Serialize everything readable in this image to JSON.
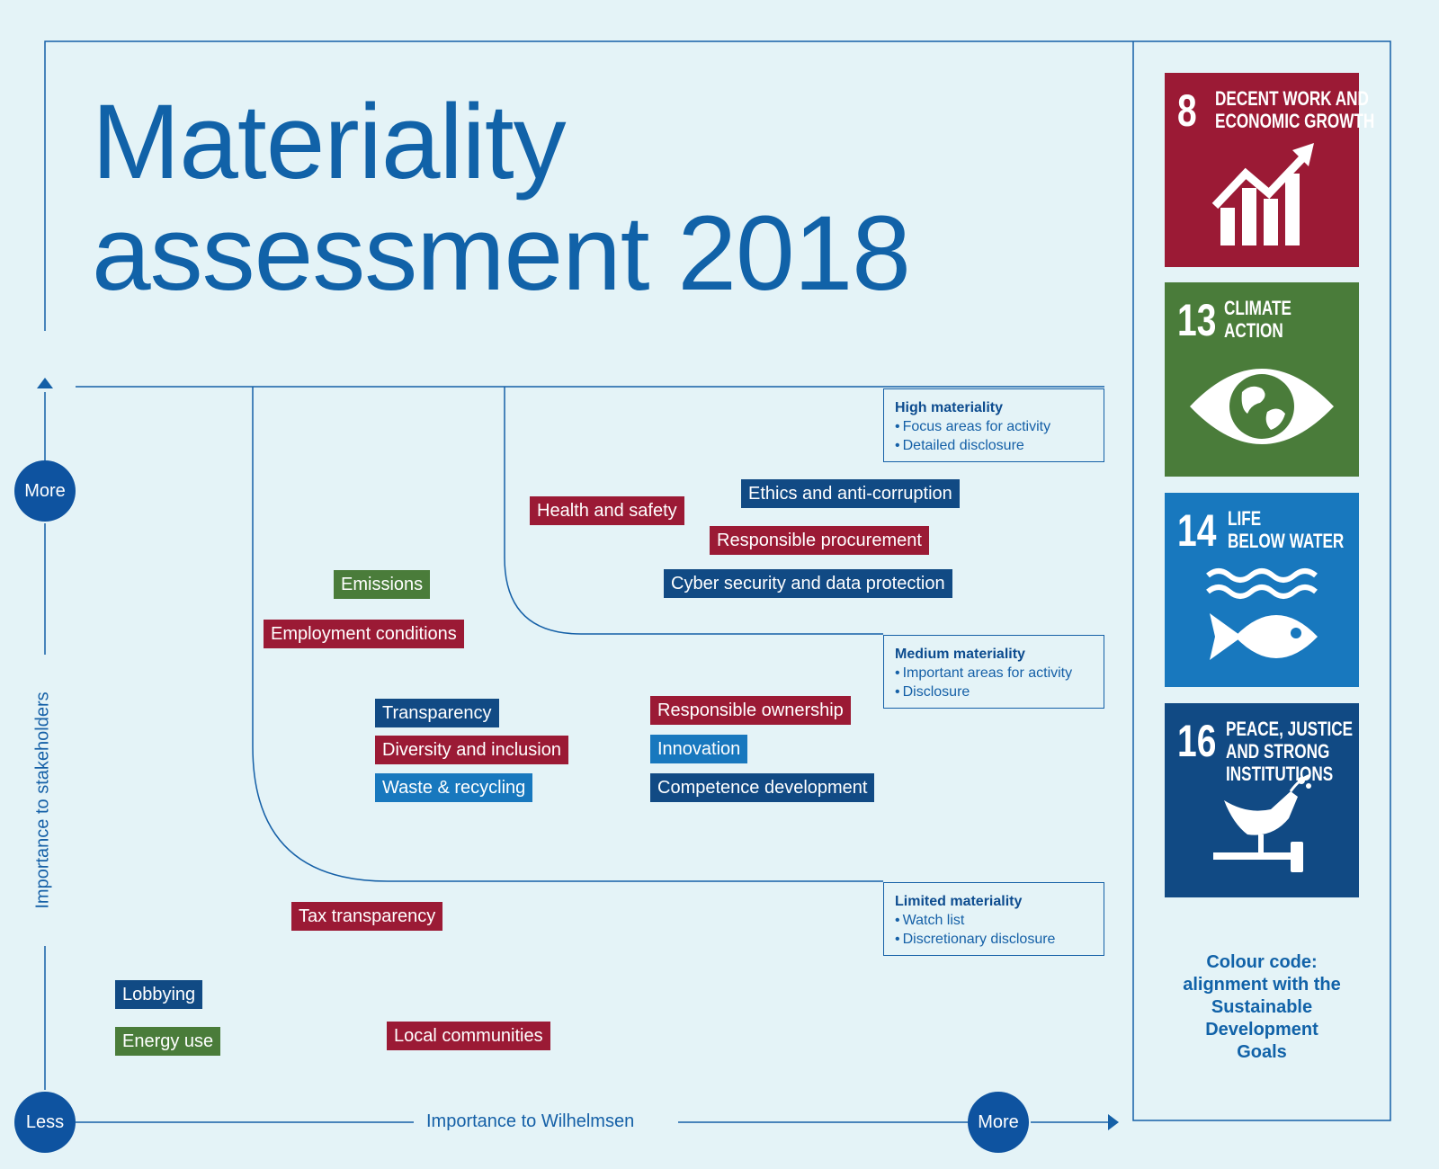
{
  "title_line1": "Materiality",
  "title_line2": "assessment 2018",
  "axes": {
    "y_label": "Importance to stakeholders",
    "x_label": "Importance to Wilhelmsen",
    "y_more": "More",
    "origin_less": "Less",
    "x_more": "More"
  },
  "legends": {
    "high": {
      "title": "High materiality",
      "items": [
        "Focus areas for activity",
        "Detailed disclosure"
      ]
    },
    "medium": {
      "title": "Medium materiality",
      "items": [
        "Important areas for activity",
        "Disclosure"
      ]
    },
    "limited": {
      "title": "Limited materiality",
      "items": [
        "Watch list",
        "Discretionary disclosure"
      ]
    }
  },
  "colors": {
    "decent_work": "#9b1a35",
    "climate": "#4a7c3a",
    "life_below_water": "#1878be",
    "peace_justice": "#114a84"
  },
  "topics": [
    {
      "label": "Health and safety",
      "color": "red"
    },
    {
      "label": "Ethics and anti-corruption",
      "color": "navy"
    },
    {
      "label": "Responsible procurement",
      "color": "red"
    },
    {
      "label": "Cyber security and data protection",
      "color": "navy"
    },
    {
      "label": "Emissions",
      "color": "green"
    },
    {
      "label": "Employment conditions",
      "color": "red"
    },
    {
      "label": "Transparency",
      "color": "navy"
    },
    {
      "label": "Diversity and inclusion",
      "color": "red"
    },
    {
      "label": "Waste & recycling",
      "color": "blue"
    },
    {
      "label": "Responsible ownership",
      "color": "red"
    },
    {
      "label": "Innovation",
      "color": "blue"
    },
    {
      "label": "Competence development",
      "color": "navy"
    },
    {
      "label": "Tax transparency",
      "color": "red"
    },
    {
      "label": "Lobbying",
      "color": "navy"
    },
    {
      "label": "Energy use",
      "color": "green"
    },
    {
      "label": "Local communities",
      "color": "red"
    }
  ],
  "sdgs": [
    {
      "number": "8",
      "line1": "DECENT WORK AND",
      "line2": "ECONOMIC GROWTH",
      "line3": "",
      "icon": "growth-chart-icon"
    },
    {
      "number": "13",
      "line1": "CLIMATE",
      "line2": "ACTION",
      "line3": "",
      "icon": "globe-eye-icon"
    },
    {
      "number": "14",
      "line1": "LIFE",
      "line2": "BELOW WATER",
      "line3": "",
      "icon": "fish-waves-icon"
    },
    {
      "number": "16",
      "line1": "PEACE, JUSTICE",
      "line2": "AND STRONG",
      "line3": "INSTITUTIONS",
      "icon": "dove-gavel-icon"
    }
  ],
  "colour_code": [
    "Colour code:",
    "alignment with the",
    "Sustainable",
    "Development",
    "Goals"
  ]
}
